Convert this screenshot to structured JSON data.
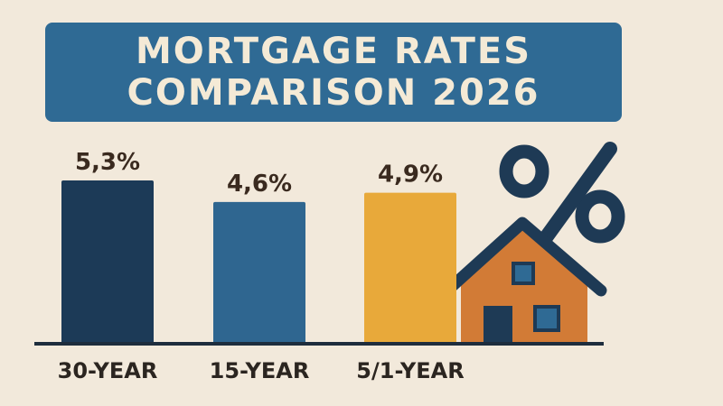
{
  "chart_data": {
    "type": "bar",
    "title": "MORTGAGE RATES COMPARISON 2026",
    "categories": [
      "30-YEAR",
      "15-YEAR",
      "5/1-YEAR"
    ],
    "values": [
      5.3,
      4.6,
      4.9
    ],
    "value_labels": [
      "5,3%",
      "4,6%",
      "4,9%"
    ],
    "colors": [
      "#1c3a57",
      "#2f6690",
      "#e8a93a"
    ]
  }
}
